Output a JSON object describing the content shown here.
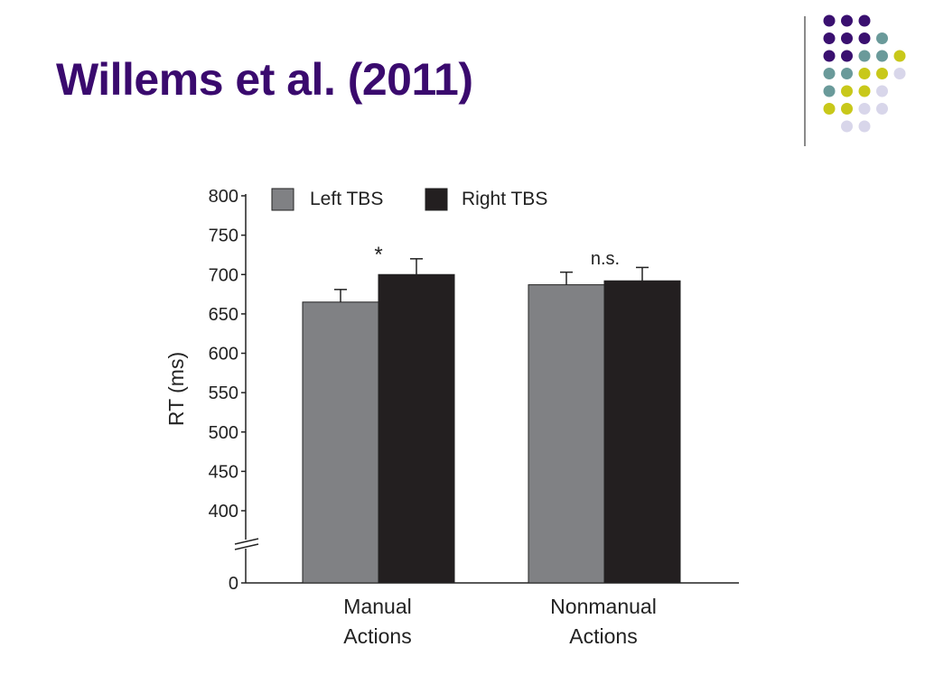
{
  "slide": {
    "title": "Willems et al. (2011)"
  },
  "decoration": {
    "dot_colors": {
      "purple": "#3a1070",
      "teal": "#6a9a9a",
      "yellow": "#c8c81a",
      "lavender": "#d8d6ea"
    },
    "dot_rows": [
      [
        "purple",
        "purple",
        "purple"
      ],
      [
        "purple",
        "purple",
        "purple",
        "teal"
      ],
      [
        "purple",
        "purple",
        "teal",
        "teal",
        "yellow"
      ],
      [
        "teal",
        "teal",
        "yellow",
        "yellow",
        "lavender"
      ],
      [
        "teal",
        "yellow",
        "yellow",
        "lavender"
      ],
      [
        "yellow",
        "yellow",
        "lavender",
        "lavender"
      ],
      [
        "lavender",
        "lavender"
      ]
    ]
  },
  "chart_data": {
    "type": "bar",
    "title": "",
    "xlabel": "",
    "ylabel": "RT (ms)",
    "ylim": [
      400,
      800
    ],
    "axis_break": true,
    "yticks": [
      800,
      750,
      700,
      650,
      600,
      550,
      500,
      450,
      400
    ],
    "ybottom_label": "0",
    "categories": [
      [
        "Manual",
        "Actions"
      ],
      [
        "Nonmanual",
        "Actions"
      ]
    ],
    "series": [
      {
        "name": "Left TBS",
        "color": "#808184",
        "values": [
          665,
          687
        ],
        "errors": [
          16,
          16
        ]
      },
      {
        "name": "Right TBS",
        "color": "#231f20",
        "values": [
          700,
          692
        ],
        "errors": [
          20,
          17
        ]
      }
    ],
    "annotations": [
      "*",
      "n.s."
    ],
    "legend": "top",
    "grid": false
  }
}
